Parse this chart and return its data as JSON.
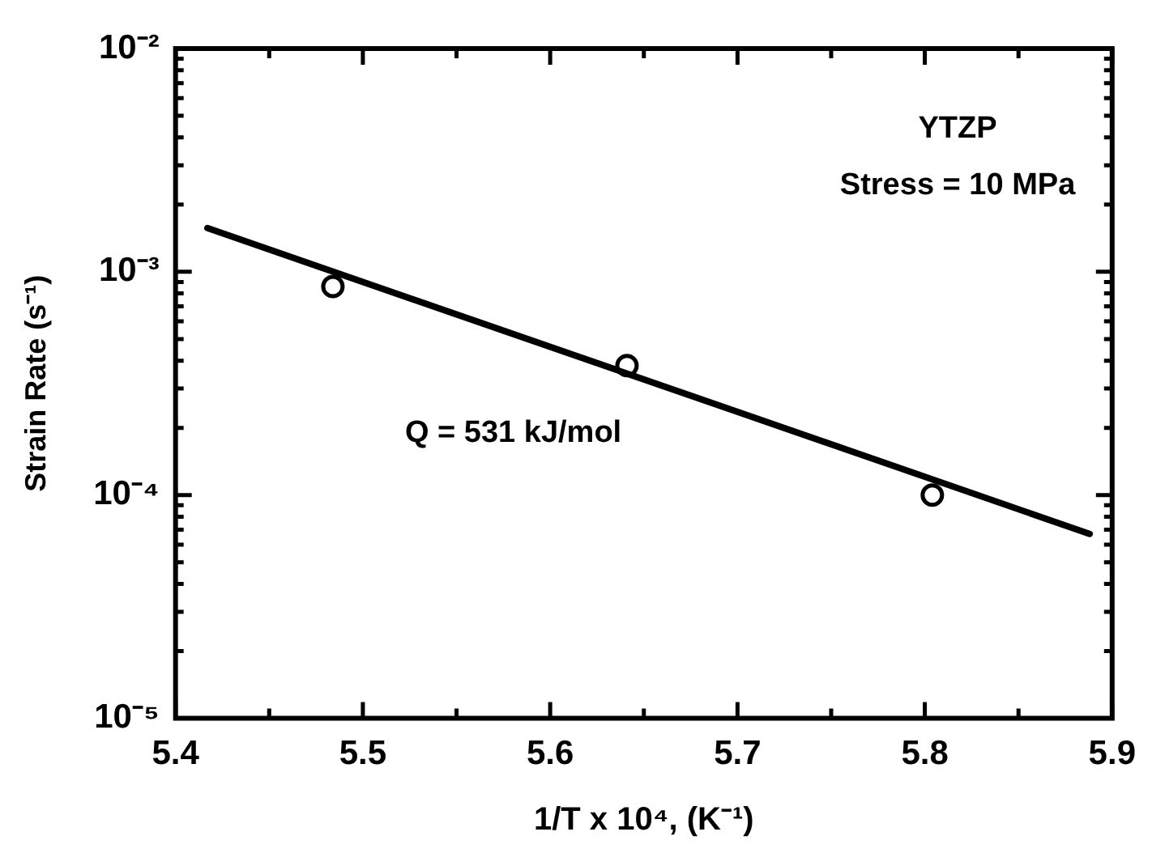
{
  "chart_data": {
    "type": "scatter",
    "xlabel": "1/T x 10⁴, (K⁻¹)",
    "ylabel": "Strain Rate (s⁻¹)",
    "log": "y",
    "marker": "circle",
    "legend": false,
    "grid": false,
    "xlim": [
      5.4,
      5.9
    ],
    "ylim": [
      1e-05,
      0.01
    ],
    "xticks": [
      5.4,
      {
        "value": 5.45,
        "label": null
      },
      5.5,
      {
        "value": 5.55,
        "label": null
      },
      5.6,
      {
        "value": 5.65,
        "label": null
      },
      5.7,
      {
        "value": 5.75,
        "label": null
      },
      5.8,
      {
        "value": 5.85,
        "label": null
      },
      5.9
    ],
    "yticks": [
      {
        "value": 1e-05,
        "label": "10⁻⁵"
      },
      {
        "value": 2e-05,
        "label": null
      },
      {
        "value": 3e-05,
        "label": null
      },
      {
        "value": 4e-05,
        "label": null
      },
      {
        "value": 5e-05,
        "label": null
      },
      {
        "value": 6e-05,
        "label": null
      },
      {
        "value": 7e-05,
        "label": null
      },
      {
        "value": 8e-05,
        "label": null
      },
      {
        "value": 9e-05,
        "label": null
      },
      {
        "value": 0.0001,
        "label": "10⁻⁴"
      },
      {
        "value": 0.0002,
        "label": null
      },
      {
        "value": 0.0003,
        "label": null
      },
      {
        "value": 0.0004,
        "label": null
      },
      {
        "value": 0.0005,
        "label": null
      },
      {
        "value": 0.0006,
        "label": null
      },
      {
        "value": 0.0007,
        "label": null
      },
      {
        "value": 0.0008,
        "label": null
      },
      {
        "value": 0.0009,
        "label": null
      },
      {
        "value": 0.001,
        "label": "10⁻³"
      },
      {
        "value": 0.002,
        "label": null
      },
      {
        "value": 0.003,
        "label": null
      },
      {
        "value": 0.004,
        "label": null
      },
      {
        "value": 0.005,
        "label": null
      },
      {
        "value": 0.006,
        "label": null
      },
      {
        "value": 0.007,
        "label": null
      },
      {
        "value": 0.008,
        "label": null
      },
      {
        "value": 0.009,
        "label": null
      },
      {
        "value": 0.01,
        "label": "10⁻²"
      }
    ],
    "series": [
      {
        "type": "scatter",
        "color": "#000000",
        "x": [
          5.484,
          5.641,
          5.804
        ],
        "values": [
          0.00086,
          0.00038,
          0.0001
        ]
      },
      {
        "type": "line",
        "color": "#000000",
        "marker": "none",
        "x": [
          5.417,
          5.888
        ],
        "values": [
          0.00157,
          6.7e-05
        ]
      }
    ],
    "annotations": [
      "YTZP",
      "Stress = 10 MPa",
      "Q = 531 kJ/mol"
    ]
  }
}
